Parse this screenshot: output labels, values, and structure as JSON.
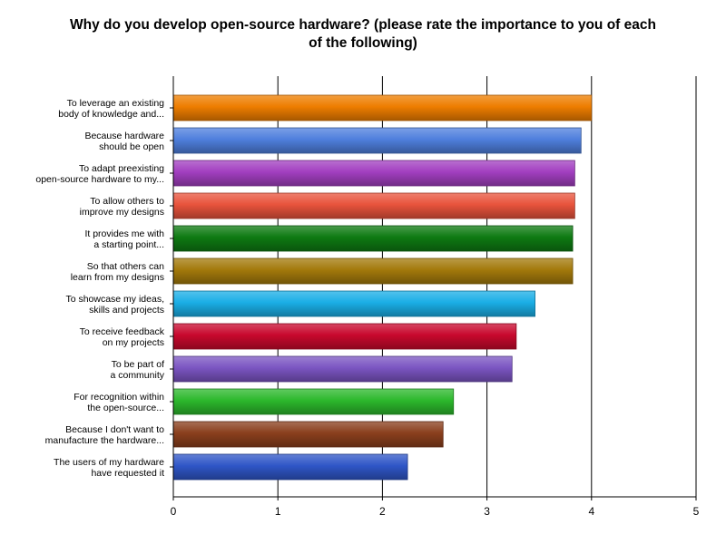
{
  "chart_data": {
    "type": "bar",
    "orientation": "horizontal",
    "title": [
      "Why do you develop  open-source hardware? (please rate the importance to you of each",
      "of the following)"
    ],
    "xlim": [
      0,
      5
    ],
    "xticks": [
      0,
      1,
      2,
      3,
      4,
      5
    ],
    "grid": true,
    "legend": "none",
    "categories": [
      [
        "To leverage an existing",
        "body of knowledge and..."
      ],
      [
        "Because hardware",
        "should be open"
      ],
      [
        "To adapt preexisting",
        "open-source hardware to my..."
      ],
      [
        "To allow others to",
        "improve my designs"
      ],
      [
        "It provides me with",
        "a starting point..."
      ],
      [
        "So that others can",
        "learn from my designs"
      ],
      [
        "To showcase my ideas,",
        "skills and projects"
      ],
      [
        "To receive feedback",
        "on my projects"
      ],
      [
        "To be part of",
        "a community"
      ],
      [
        "For recognition within",
        "the open-source..."
      ],
      [
        "Because I don't want to",
        "manufacture the hardware..."
      ],
      [
        "The users of my hardware",
        "have requested it"
      ]
    ],
    "values": [
      4.0,
      3.9,
      3.84,
      3.84,
      3.82,
      3.82,
      3.46,
      3.28,
      3.24,
      2.68,
      2.58,
      2.24
    ],
    "colors": [
      "#ee7d00",
      "#4f7fdd",
      "#a23fc0",
      "#e8533c",
      "#0e7a12",
      "#a3790b",
      "#1aaee6",
      "#c8082d",
      "#7b55c2",
      "#2cb82c",
      "#8a3f1d",
      "#2f56c7"
    ]
  }
}
